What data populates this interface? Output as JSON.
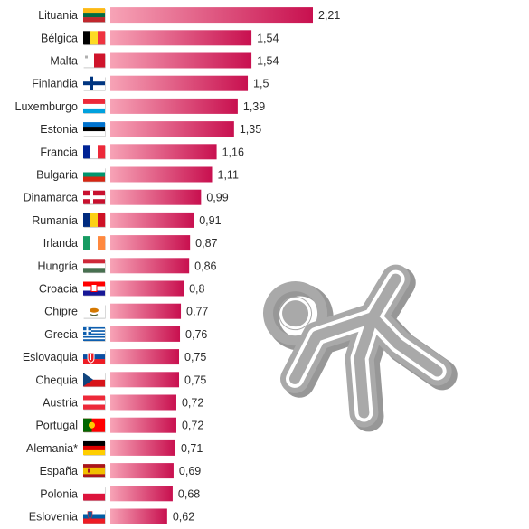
{
  "chart_data": {
    "type": "bar",
    "orientation": "horizontal",
    "categories": [
      "Lituania",
      "Bélgica",
      "Malta",
      "Finlandia",
      "Luxemburgo",
      "Estonia",
      "Francia",
      "Bulgaria",
      "Dinamarca",
      "Rumanía",
      "Irlanda",
      "Hungría",
      "Croacia",
      "Chipre",
      "Grecia",
      "Eslovaquia",
      "Chequia",
      "Austria",
      "Portugal",
      "Alemania*",
      "España",
      "Polonia",
      "Eslovenia"
    ],
    "values": [
      2.21,
      1.54,
      1.54,
      1.5,
      1.39,
      1.35,
      1.16,
      1.11,
      0.99,
      0.91,
      0.87,
      0.86,
      0.8,
      0.77,
      0.76,
      0.75,
      0.75,
      0.72,
      0.72,
      0.71,
      0.69,
      0.68,
      0.62
    ],
    "value_labels": [
      "2,21",
      "1,54",
      "1,54",
      "1,5",
      "1,39",
      "1,35",
      "1,16",
      "1,11",
      "0,99",
      "0,91",
      "0,87",
      "0,86",
      "0,8",
      "0,77",
      "0,76",
      "0,75",
      "0,75",
      "0,72",
      "0,72",
      "0,71",
      "0,69",
      "0,68",
      "0,62"
    ],
    "flags": [
      "lithuania",
      "belgium",
      "malta",
      "finland",
      "luxembourg",
      "estonia",
      "france",
      "bulgaria",
      "denmark",
      "romania",
      "ireland",
      "hungary",
      "croatia",
      "cyprus",
      "greece",
      "slovakia",
      "czechia",
      "austria",
      "portugal",
      "germany",
      "spain",
      "poland",
      "slovenia"
    ],
    "title": "",
    "xlabel": "",
    "ylabel": "",
    "xlim": [
      0,
      2.21
    ],
    "grid": false,
    "legend": "none",
    "colors": {
      "bar_start": "#f7a3b6",
      "bar_end": "#c8104f",
      "text": "#2b2b2b",
      "icon": "#a9a9a9",
      "icon_shadow": "#8c8c8c"
    }
  },
  "decoration": {
    "icon": "crime-scene-body-outline-icon"
  }
}
